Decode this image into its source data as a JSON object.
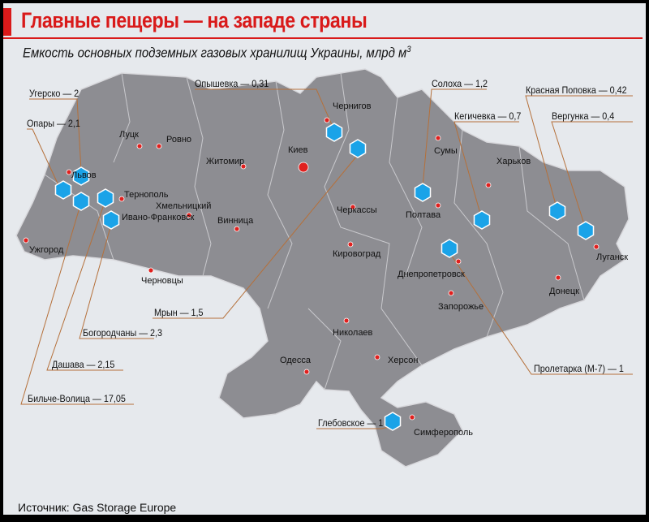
{
  "title": "Главные пещеры — на западе страны",
  "subtitle": "Емкость основных подземных газовых хранилищ Украины, млрд м",
  "subtitle_unit_sup": "3",
  "source": "Источник: Gas Storage Europe",
  "colors": {
    "accent": "#d91a1a",
    "storage": "#1aa3e8",
    "map": "#8d8d92",
    "leader": "#b5703a",
    "city_dot": "#e0201e"
  },
  "storages": [
    {
      "name": "Угерско — 2"
    },
    {
      "name": "Опары — 2,1"
    },
    {
      "name": "Опышевка — 0,31"
    },
    {
      "name": "Солоха — 1,2"
    },
    {
      "name": "Красная Поповка — 0,42"
    },
    {
      "name": "Вергунка — 0,4"
    },
    {
      "name": "Кегичевка — 0,7"
    },
    {
      "name": "Мрын — 1,5"
    },
    {
      "name": "Богородчаны — 2,3"
    },
    {
      "name": "Дашава — 2,15"
    },
    {
      "name": "Бильче-Волица — 17,05"
    },
    {
      "name": "Пролетарка (М-7) — 1"
    },
    {
      "name": "Глебовское — 1"
    }
  ],
  "cities": [
    "Луцк",
    "Ровно",
    "Львов",
    "Тернополь",
    "Хмельницкий",
    "Ивано-Франковск",
    "Ужгород",
    "Черновцы",
    "Житомир",
    "Киев",
    "Винница",
    "Чернигов",
    "Черкассы",
    "Сумы",
    "Полтава",
    "Харьков",
    "Кировоград",
    "Днепропетровск",
    "Запорожье",
    "Донецк",
    "Луганск",
    "Николаев",
    "Херсон",
    "Одесса",
    "Симферополь"
  ]
}
